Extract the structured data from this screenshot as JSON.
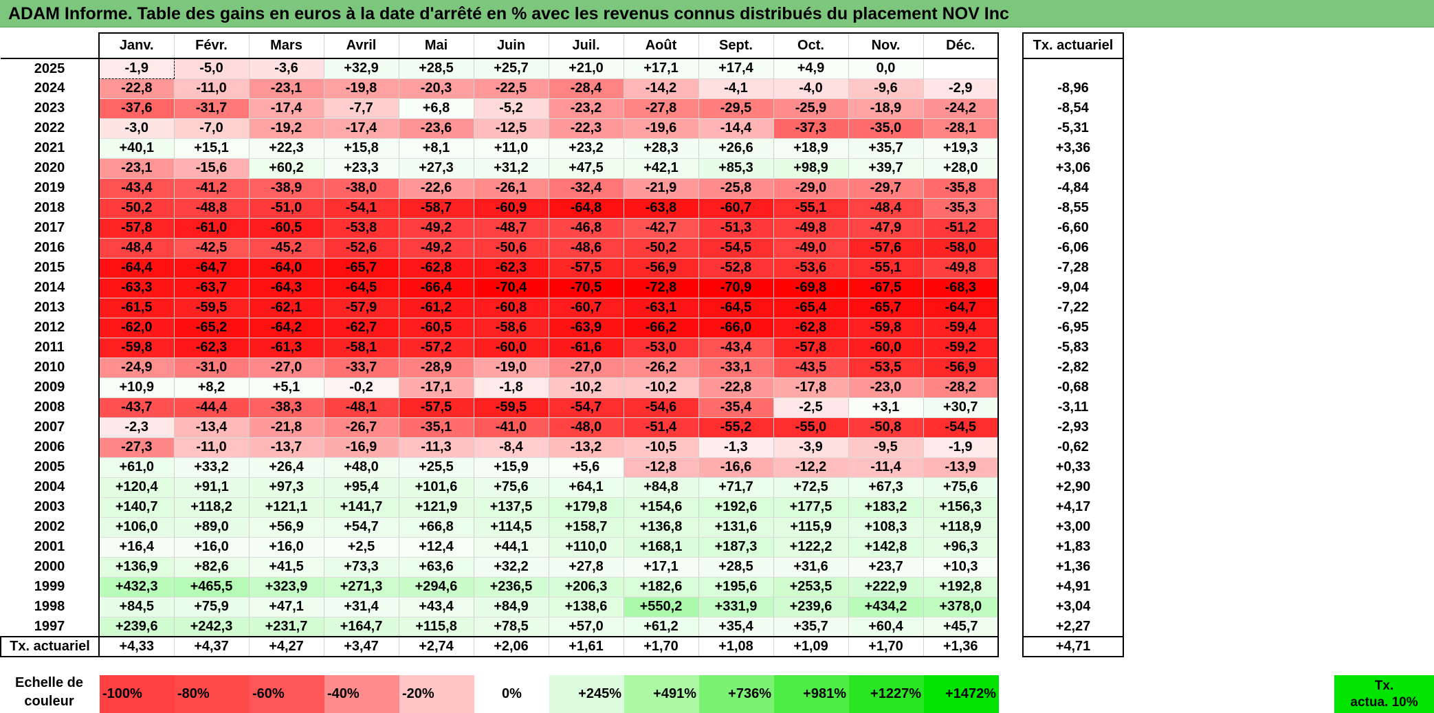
{
  "title": "ADAM Informe. Table des gains en euros à la date d'arrêté en % avec les revenus connus distribués du placement NOV Inc",
  "chart_data": {
    "type": "heatmap",
    "months": [
      "Janv.",
      "Févr.",
      "Mars",
      "Avril",
      "Mai",
      "Juin",
      "Juil.",
      "Août",
      "Sept.",
      "Oct.",
      "Nov.",
      "Déc."
    ],
    "annual_header": "Tx. actuariel",
    "rows": [
      {
        "year": "2025",
        "values": [
          "-1,9",
          "-5,0",
          "-3,6",
          "+32,9",
          "+28,5",
          "+25,7",
          "+21,0",
          "+17,1",
          "+17,4",
          "+4,9",
          "0,0",
          ""
        ],
        "annual": ""
      },
      {
        "year": "2024",
        "values": [
          "-22,8",
          "-11,0",
          "-23,1",
          "-19,8",
          "-20,3",
          "-22,5",
          "-28,4",
          "-14,2",
          "-4,1",
          "-4,0",
          "-9,6",
          "-2,9"
        ],
        "annual": "-8,96"
      },
      {
        "year": "2023",
        "values": [
          "-37,6",
          "-31,7",
          "-17,4",
          "-7,7",
          "+6,8",
          "-5,2",
          "-23,2",
          "-27,8",
          "-29,5",
          "-25,9",
          "-18,9",
          "-24,2"
        ],
        "annual": "-8,54"
      },
      {
        "year": "2022",
        "values": [
          "-3,0",
          "-7,0",
          "-19,2",
          "-17,4",
          "-23,6",
          "-12,5",
          "-22,3",
          "-19,6",
          "-14,4",
          "-37,3",
          "-35,0",
          "-28,1"
        ],
        "annual": "-5,31"
      },
      {
        "year": "2021",
        "values": [
          "+40,1",
          "+15,1",
          "+22,3",
          "+15,8",
          "+8,1",
          "+11,0",
          "+23,2",
          "+28,3",
          "+26,6",
          "+18,9",
          "+35,7",
          "+19,3"
        ],
        "annual": "+3,36"
      },
      {
        "year": "2020",
        "values": [
          "-23,1",
          "-15,6",
          "+60,2",
          "+23,3",
          "+27,3",
          "+31,2",
          "+47,5",
          "+42,1",
          "+85,3",
          "+98,9",
          "+39,7",
          "+28,0"
        ],
        "annual": "+3,06"
      },
      {
        "year": "2019",
        "values": [
          "-43,4",
          "-41,2",
          "-38,9",
          "-38,0",
          "-22,6",
          "-26,1",
          "-32,4",
          "-21,9",
          "-25,8",
          "-29,0",
          "-29,7",
          "-35,8"
        ],
        "annual": "-4,84"
      },
      {
        "year": "2018",
        "values": [
          "-50,2",
          "-48,8",
          "-51,0",
          "-54,1",
          "-58,7",
          "-60,9",
          "-64,8",
          "-63,8",
          "-60,7",
          "-55,1",
          "-48,4",
          "-35,3"
        ],
        "annual": "-8,55"
      },
      {
        "year": "2017",
        "values": [
          "-57,8",
          "-61,0",
          "-60,5",
          "-53,8",
          "-49,2",
          "-48,7",
          "-46,8",
          "-42,7",
          "-51,3",
          "-49,8",
          "-47,9",
          "-51,2"
        ],
        "annual": "-6,60"
      },
      {
        "year": "2016",
        "values": [
          "-48,4",
          "-42,5",
          "-45,2",
          "-52,6",
          "-49,2",
          "-50,6",
          "-48,6",
          "-50,2",
          "-54,5",
          "-49,0",
          "-57,6",
          "-58,0"
        ],
        "annual": "-6,06"
      },
      {
        "year": "2015",
        "values": [
          "-64,4",
          "-64,7",
          "-64,0",
          "-65,7",
          "-62,8",
          "-62,3",
          "-57,5",
          "-56,9",
          "-52,8",
          "-53,6",
          "-55,1",
          "-49,8"
        ],
        "annual": "-7,28"
      },
      {
        "year": "2014",
        "values": [
          "-63,3",
          "-63,7",
          "-64,3",
          "-64,5",
          "-66,4",
          "-70,4",
          "-70,5",
          "-72,8",
          "-70,9",
          "-69,8",
          "-67,5",
          "-68,3"
        ],
        "annual": "-9,04"
      },
      {
        "year": "2013",
        "values": [
          "-61,5",
          "-59,5",
          "-62,1",
          "-57,9",
          "-61,2",
          "-60,8",
          "-60,7",
          "-63,1",
          "-64,5",
          "-65,4",
          "-65,7",
          "-64,7"
        ],
        "annual": "-7,22"
      },
      {
        "year": "2012",
        "values": [
          "-62,0",
          "-65,2",
          "-64,2",
          "-62,7",
          "-60,5",
          "-58,6",
          "-63,9",
          "-66,2",
          "-66,0",
          "-62,8",
          "-59,8",
          "-59,4"
        ],
        "annual": "-6,95"
      },
      {
        "year": "2011",
        "values": [
          "-59,8",
          "-62,3",
          "-61,3",
          "-58,1",
          "-57,2",
          "-60,0",
          "-61,6",
          "-53,0",
          "-43,4",
          "-57,8",
          "-60,0",
          "-59,2"
        ],
        "annual": "-5,83"
      },
      {
        "year": "2010",
        "values": [
          "-24,9",
          "-31,0",
          "-27,0",
          "-33,7",
          "-28,9",
          "-19,0",
          "-27,0",
          "-26,2",
          "-33,1",
          "-43,5",
          "-53,5",
          "-56,9"
        ],
        "annual": "-2,82"
      },
      {
        "year": "2009",
        "values": [
          "+10,9",
          "+8,2",
          "+5,1",
          "-0,2",
          "-17,1",
          "-1,8",
          "-10,2",
          "-10,2",
          "-22,8",
          "-17,8",
          "-23,0",
          "-28,2"
        ],
        "annual": "-0,68"
      },
      {
        "year": "2008",
        "values": [
          "-43,7",
          "-44,4",
          "-38,3",
          "-48,1",
          "-57,5",
          "-59,5",
          "-54,7",
          "-54,6",
          "-35,4",
          "-2,5",
          "+3,1",
          "+30,7"
        ],
        "annual": "-3,11"
      },
      {
        "year": "2007",
        "values": [
          "-2,3",
          "-13,4",
          "-21,8",
          "-26,7",
          "-35,1",
          "-41,0",
          "-48,0",
          "-51,4",
          "-55,2",
          "-55,0",
          "-50,8",
          "-54,5"
        ],
        "annual": "-2,93"
      },
      {
        "year": "2006",
        "values": [
          "-27,3",
          "-11,0",
          "-13,7",
          "-16,9",
          "-11,3",
          "-8,4",
          "-13,2",
          "-10,5",
          "-1,3",
          "-3,9",
          "-9,5",
          "-1,9"
        ],
        "annual": "-0,62"
      },
      {
        "year": "2005",
        "values": [
          "+61,0",
          "+33,2",
          "+26,4",
          "+48,0",
          "+25,5",
          "+15,9",
          "+5,6",
          "-12,8",
          "-16,6",
          "-12,2",
          "-11,4",
          "-13,9"
        ],
        "annual": "+0,33"
      },
      {
        "year": "2004",
        "values": [
          "+120,4",
          "+91,1",
          "+97,3",
          "+95,4",
          "+101,6",
          "+75,6",
          "+64,1",
          "+84,8",
          "+71,7",
          "+72,5",
          "+67,3",
          "+75,6"
        ],
        "annual": "+2,90"
      },
      {
        "year": "2003",
        "values": [
          "+140,7",
          "+118,2",
          "+121,1",
          "+141,7",
          "+121,9",
          "+137,5",
          "+179,8",
          "+154,6",
          "+192,6",
          "+177,5",
          "+183,2",
          "+156,3"
        ],
        "annual": "+4,17"
      },
      {
        "year": "2002",
        "values": [
          "+106,0",
          "+89,0",
          "+56,9",
          "+54,7",
          "+66,8",
          "+114,5",
          "+158,7",
          "+136,8",
          "+131,6",
          "+115,9",
          "+108,3",
          "+118,9"
        ],
        "annual": "+3,00"
      },
      {
        "year": "2001",
        "values": [
          "+16,4",
          "+16,0",
          "+16,0",
          "+2,5",
          "+12,4",
          "+44,1",
          "+110,0",
          "+168,1",
          "+187,3",
          "+122,2",
          "+142,8",
          "+96,3"
        ],
        "annual": "+1,83"
      },
      {
        "year": "2000",
        "values": [
          "+136,9",
          "+82,6",
          "+41,5",
          "+73,3",
          "+63,6",
          "+32,2",
          "+27,8",
          "+17,1",
          "+28,5",
          "+31,6",
          "+23,7",
          "+10,3"
        ],
        "annual": "+1,36"
      },
      {
        "year": "1999",
        "values": [
          "+432,3",
          "+465,5",
          "+323,9",
          "+271,3",
          "+294,6",
          "+236,5",
          "+206,3",
          "+182,6",
          "+195,6",
          "+253,5",
          "+222,9",
          "+192,8"
        ],
        "annual": "+4,91"
      },
      {
        "year": "1998",
        "values": [
          "+84,5",
          "+75,9",
          "+47,1",
          "+31,4",
          "+43,4",
          "+84,9",
          "+138,6",
          "+550,2",
          "+331,9",
          "+239,6",
          "+434,2",
          "+378,0"
        ],
        "annual": "+3,04"
      },
      {
        "year": "1997",
        "values": [
          "+239,6",
          "+242,3",
          "+231,7",
          "+164,7",
          "+115,8",
          "+78,5",
          "+57,0",
          "+61,2",
          "+35,4",
          "+35,7",
          "+60,4",
          "+45,7"
        ],
        "annual": "+2,27"
      }
    ],
    "tx_row": {
      "label": "Tx. actuariel",
      "values": [
        "+4,33",
        "+4,37",
        "+4,27",
        "+3,47",
        "+2,74",
        "+2,06",
        "+1,61",
        "+1,70",
        "+1,08",
        "+1,09",
        "+1,70",
        "+1,36"
      ],
      "annual": "+4,71"
    },
    "legend": {
      "label_line1": "Echelle de",
      "label_line2": "couleur",
      "steps": [
        {
          "label": "-100%",
          "color": "#ff4040"
        },
        {
          "label": "-80%",
          "color": "#ff4a4a"
        },
        {
          "label": "-60%",
          "color": "#ff5757"
        },
        {
          "label": "-40%",
          "color": "#ff8c8c"
        },
        {
          "label": "-20%",
          "color": "#ffc4c4"
        },
        {
          "label": "0%",
          "color": "#ffffff"
        },
        {
          "label": "+245%",
          "color": "#dcfadc"
        },
        {
          "label": "+491%",
          "color": "#adf8a5"
        },
        {
          "label": "+736%",
          "color": "#7cf274"
        },
        {
          "label": "+981%",
          "color": "#4ded45"
        },
        {
          "label": "+1227%",
          "color": "#2ae622"
        },
        {
          "label": "+1472%",
          "color": "#00e400"
        }
      ],
      "tx_line1": "Tx.",
      "tx_line2": "actua. 10%",
      "tx_color": "#00e400"
    }
  }
}
